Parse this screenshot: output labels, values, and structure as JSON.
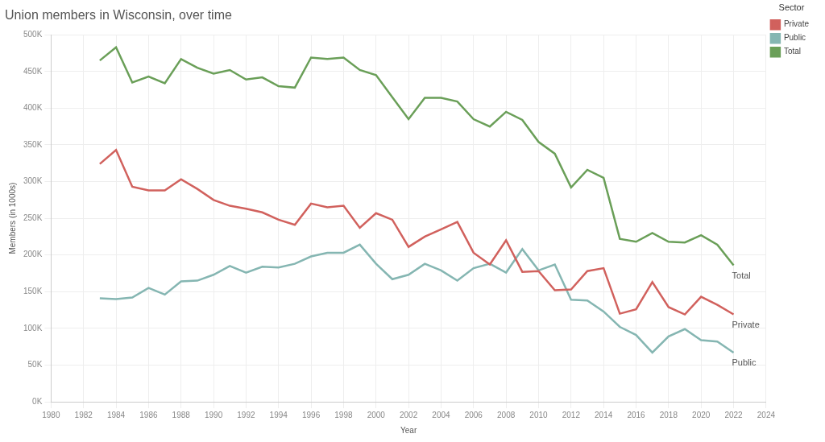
{
  "chart_data": {
    "type": "line",
    "title": "Union members in Wisconsin, over time",
    "x_label": "Year",
    "y_label": "Members (in 1000s)",
    "legend_title": "Sector",
    "legend": "top-right",
    "grid": true,
    "x": [
      1983,
      1984,
      1985,
      1986,
      1987,
      1988,
      1989,
      1990,
      1991,
      1992,
      1993,
      1994,
      1995,
      1996,
      1997,
      1998,
      1999,
      2000,
      2001,
      2002,
      2003,
      2004,
      2005,
      2006,
      2007,
      2008,
      2009,
      2010,
      2011,
      2012,
      2013,
      2014,
      2015,
      2016,
      2017,
      2018,
      2019,
      2020,
      2021,
      2022
    ],
    "series": [
      {
        "name": "Private",
        "color": "#d1615d",
        "values": [
          324000,
          343000,
          293000,
          288000,
          288000,
          303000,
          290000,
          275000,
          267000,
          263000,
          258000,
          248000,
          241000,
          270000,
          265000,
          267000,
          237000,
          257000,
          248000,
          211000,
          225000,
          235000,
          245000,
          203000,
          187000,
          220000,
          177000,
          178000,
          152000,
          153000,
          178000,
          182000,
          120000,
          126000,
          163000,
          129000,
          119000,
          143000,
          132000,
          119000
        ]
      },
      {
        "name": "Public",
        "color": "#85b6b2",
        "values": [
          141000,
          140000,
          142000,
          155000,
          146000,
          164000,
          165000,
          173000,
          185000,
          176000,
          184000,
          183000,
          188000,
          198000,
          203000,
          203000,
          214000,
          188000,
          167000,
          173000,
          188000,
          179000,
          165000,
          182000,
          188000,
          176000,
          208000,
          179000,
          187000,
          139000,
          138000,
          123000,
          102000,
          91000,
          67000,
          89000,
          99000,
          84000,
          82000,
          67000
        ]
      },
      {
        "name": "Total",
        "color": "#6a9f58",
        "values": [
          465000,
          483000,
          435000,
          443000,
          434000,
          467000,
          455000,
          447000,
          452000,
          439000,
          442000,
          430000,
          428000,
          469000,
          467000,
          469000,
          452000,
          445000,
          415000,
          385000,
          414000,
          414000,
          409000,
          385000,
          375000,
          395000,
          384000,
          354000,
          338000,
          292000,
          316000,
          305000,
          222000,
          218000,
          230000,
          218000,
          217000,
          227000,
          214000,
          186000
        ]
      }
    ],
    "xlim": [
      1980,
      2024
    ],
    "xticks": [
      1980,
      1982,
      1984,
      1986,
      1988,
      1990,
      1992,
      1994,
      1996,
      1998,
      2000,
      2002,
      2004,
      2006,
      2008,
      2010,
      2012,
      2014,
      2016,
      2018,
      2020,
      2022,
      2024
    ],
    "ylim": [
      0,
      500000
    ],
    "yticks": [
      {
        "value": 0,
        "label": "0K"
      },
      {
        "value": 50000,
        "label": "50K"
      },
      {
        "value": 100000,
        "label": "100K"
      },
      {
        "value": 150000,
        "label": "150K"
      },
      {
        "value": 200000,
        "label": "200K"
      },
      {
        "value": 250000,
        "label": "250K"
      },
      {
        "value": 300000,
        "label": "300K"
      },
      {
        "value": 350000,
        "label": "350K"
      },
      {
        "value": 400000,
        "label": "400K"
      },
      {
        "value": 450000,
        "label": "450K"
      },
      {
        "value": 500000,
        "label": "500K"
      }
    ]
  }
}
